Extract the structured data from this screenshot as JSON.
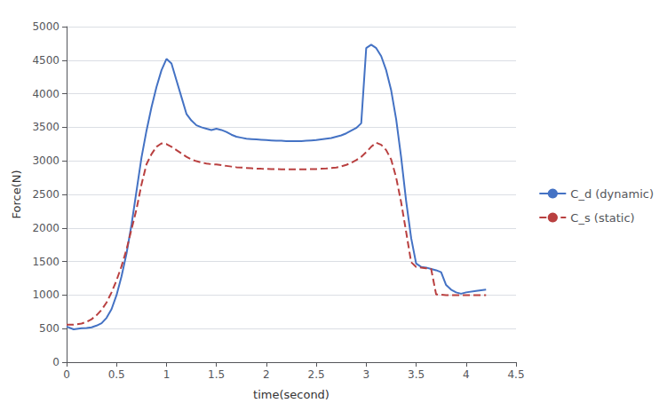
{
  "chart_data": {
    "type": "line",
    "title": "",
    "xlabel": "time(second)",
    "ylabel": "Force(N)",
    "xlim": [
      0,
      4.5
    ],
    "ylim": [
      0,
      5000
    ],
    "xticks": [
      0,
      0.5,
      1,
      1.5,
      2,
      2.5,
      3,
      3.5,
      4,
      4.5
    ],
    "yticks": [
      0,
      500,
      1000,
      1500,
      2000,
      2500,
      3000,
      3500,
      4000,
      4500,
      5000
    ],
    "grid": true,
    "legend": "right",
    "x": [
      0.0,
      0.07,
      0.15,
      0.2,
      0.25,
      0.3,
      0.35,
      0.4,
      0.45,
      0.5,
      0.55,
      0.6,
      0.65,
      0.7,
      0.75,
      0.8,
      0.85,
      0.9,
      0.95,
      1.0,
      1.05,
      1.1,
      1.15,
      1.2,
      1.25,
      1.3,
      1.35,
      1.4,
      1.45,
      1.5,
      1.55,
      1.6,
      1.65,
      1.7,
      1.75,
      1.8,
      1.85,
      1.9,
      1.95,
      2.0,
      2.05,
      2.1,
      2.15,
      2.2,
      2.25,
      2.3,
      2.35,
      2.4,
      2.45,
      2.5,
      2.55,
      2.6,
      2.65,
      2.7,
      2.75,
      2.8,
      2.85,
      2.9,
      2.95,
      3.0,
      3.05,
      3.1,
      3.15,
      3.2,
      3.25,
      3.3,
      3.35,
      3.4,
      3.45,
      3.5,
      3.55,
      3.6,
      3.65,
      3.7,
      3.75,
      3.8,
      3.85,
      3.9,
      3.95,
      4.0,
      4.1,
      4.2
    ],
    "series": [
      {
        "name": "C_d (dynamic)",
        "color": "#4472C4",
        "line_style": "solid",
        "values": [
          530,
          490,
          505,
          510,
          520,
          545,
          580,
          660,
          790,
          1000,
          1280,
          1620,
          2050,
          2550,
          3050,
          3450,
          3800,
          4100,
          4350,
          4520,
          4450,
          4200,
          3950,
          3700,
          3600,
          3530,
          3500,
          3480,
          3460,
          3480,
          3460,
          3430,
          3390,
          3360,
          3345,
          3330,
          3325,
          3320,
          3315,
          3310,
          3305,
          3300,
          3300,
          3295,
          3295,
          3295,
          3295,
          3300,
          3305,
          3310,
          3320,
          3330,
          3340,
          3360,
          3380,
          3410,
          3450,
          3490,
          3560,
          4680,
          4730,
          4680,
          4560,
          4350,
          4050,
          3620,
          3050,
          2400,
          1850,
          1470,
          1420,
          1410,
          1390,
          1370,
          1340,
          1150,
          1080,
          1040,
          1020,
          1040,
          1060,
          1080
        ]
      },
      {
        "name": "C_s (static)",
        "color": "#B94040",
        "line_style": "dashed",
        "values": [
          560,
          560,
          575,
          600,
          640,
          700,
          780,
          890,
          1040,
          1220,
          1430,
          1680,
          1980,
          2280,
          2650,
          2950,
          3100,
          3210,
          3260,
          3250,
          3210,
          3160,
          3110,
          3060,
          3020,
          2995,
          2975,
          2960,
          2950,
          2945,
          2935,
          2925,
          2915,
          2905,
          2900,
          2895,
          2890,
          2885,
          2882,
          2880,
          2878,
          2876,
          2875,
          2875,
          2874,
          2874,
          2874,
          2875,
          2876,
          2878,
          2882,
          2886,
          2892,
          2900,
          2918,
          2940,
          2970,
          3010,
          3060,
          3130,
          3210,
          3270,
          3240,
          3160,
          3020,
          2750,
          2380,
          1940,
          1490,
          1420,
          1410,
          1400,
          1390,
          1010,
          1005,
          1000,
          1000,
          1000,
          1000,
          1000,
          1000,
          1000
        ]
      }
    ]
  }
}
